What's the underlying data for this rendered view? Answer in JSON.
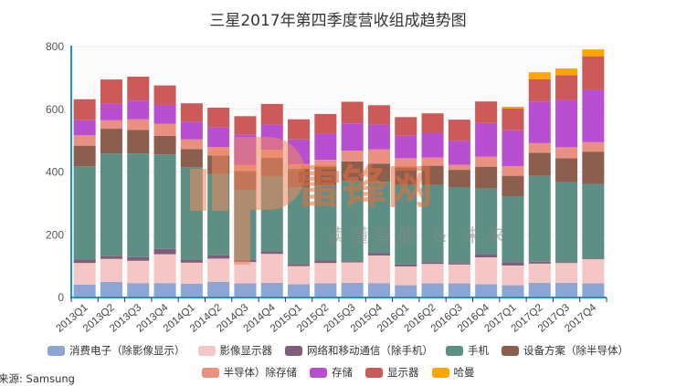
{
  "chart_data": {
    "type": "bar",
    "stacked": true,
    "title": "三星2017年第四季度营收组成趋势图",
    "xlabel": "",
    "ylabel": "",
    "ylim": [
      0,
      800
    ],
    "yticks": [
      0,
      200,
      400,
      600,
      800
    ],
    "grid": true,
    "legend_position": "bottom",
    "categories": [
      "2013Q1",
      "2013Q2",
      "2013Q3",
      "2013Q4",
      "2014Q1",
      "2014Q2",
      "2014Q3",
      "2014Q4",
      "2015Q1",
      "2015Q2",
      "2015Q3",
      "2015Q4",
      "2016Q1",
      "2016Q2",
      "2016Q3",
      "2016Q4",
      "2017Q1",
      "2017Q2",
      "2017Q3",
      "2017Q4"
    ],
    "series": [
      {
        "name": "消费电子（除影像显示）",
        "color": "#8ea5d3",
        "values": [
          41,
          50,
          46,
          46,
          44,
          50,
          45,
          47,
          42,
          45,
          47,
          46,
          39,
          45,
          45,
          42,
          39,
          47,
          47,
          45
        ]
      },
      {
        "name": "影像显示器",
        "color": "#f4c6c6",
        "values": [
          69,
          73,
          71,
          92,
          67,
          74,
          68,
          92,
          58,
          65,
          65,
          88,
          60,
          62,
          60,
          86,
          63,
          61,
          63,
          77
        ]
      },
      {
        "name": "网络和移动通信（除手机）",
        "color": "#7e5e7a",
        "values": [
          11,
          9,
          12,
          17,
          10,
          10,
          8,
          9,
          7,
          9,
          4,
          7,
          6,
          6,
          5,
          11,
          11,
          6,
          3,
          2
        ]
      },
      {
        "name": "手机",
        "color": "#5e8f84",
        "values": [
          297,
          327,
          330,
          301,
          294,
          260,
          222,
          239,
          245,
          238,
          256,
          228,
          254,
          246,
          242,
          208,
          210,
          274,
          254,
          238
        ]
      },
      {
        "name": "设备方案（除半导体）",
        "color": "#8b5e4e",
        "values": [
          66,
          79,
          75,
          59,
          58,
          59,
          60,
          58,
          58,
          60,
          62,
          58,
          56,
          61,
          55,
          70,
          65,
          73,
          77,
          103
        ]
      },
      {
        "name": "半导体）除存储",
        "color": "#ea9080",
        "values": [
          33,
          27,
          34,
          39,
          31,
          27,
          20,
          26,
          15,
          22,
          34,
          45,
          29,
          26,
          16,
          32,
          31,
          31,
          35,
          30
        ]
      },
      {
        "name": "存储",
        "color": "#b84fd1",
        "values": [
          48,
          52,
          60,
          60,
          57,
          63,
          97,
          80,
          79,
          83,
          87,
          79,
          72,
          79,
          77,
          107,
          114,
          133,
          151,
          167
        ]
      },
      {
        "name": "显示器",
        "color": "#cc5a59",
        "values": [
          67,
          78,
          76,
          62,
          58,
          62,
          58,
          66,
          64,
          63,
          69,
          62,
          59,
          62,
          67,
          69,
          70,
          71,
          79,
          107
        ]
      },
      {
        "name": "哈曼",
        "color": "#ffa500",
        "values": [
          0,
          0,
          0,
          0,
          0,
          0,
          0,
          0,
          0,
          0,
          0,
          0,
          0,
          0,
          0,
          0,
          5,
          22,
          21,
          22
        ]
      }
    ]
  },
  "source": "来源: Samsung",
  "watermark": {
    "brand": "雷锋网",
    "slogan": "读懂智能 & 未来"
  },
  "colors": {
    "axis": "#1e90d8",
    "grid": "#eeeeee"
  }
}
